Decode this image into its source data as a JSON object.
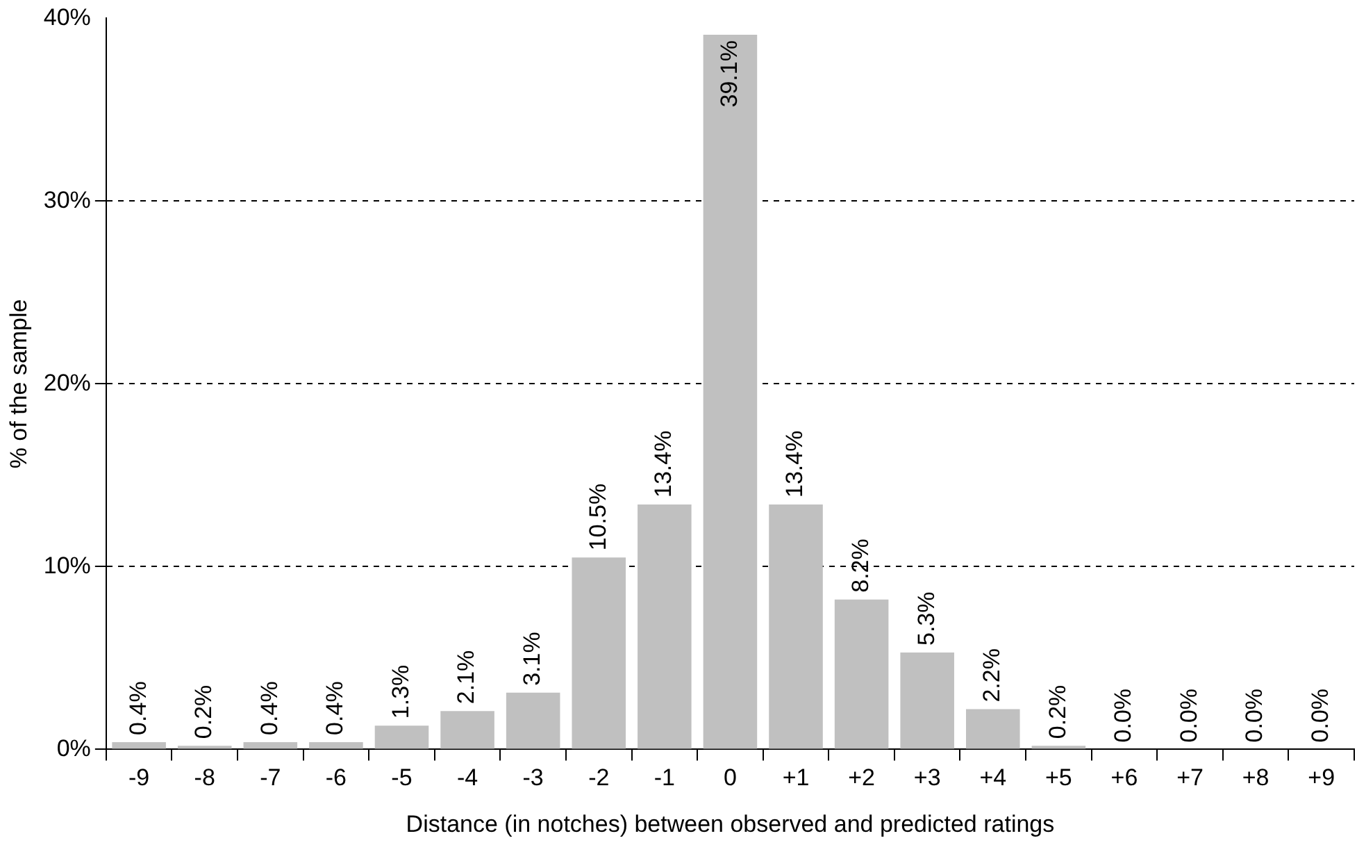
{
  "chart_data": {
    "type": "bar",
    "xlabel": "Distance (in notches) between observed and predicted ratings",
    "ylabel": "% of the sample",
    "categories": [
      "-9",
      "-8",
      "-7",
      "-6",
      "-5",
      "-4",
      "-3",
      "-2",
      "-1",
      "0",
      "+1",
      "+2",
      "+3",
      "+4",
      "+5",
      "+6",
      "+7",
      "+8",
      "+9"
    ],
    "values": [
      0.4,
      0.2,
      0.4,
      0.4,
      1.3,
      2.1,
      3.1,
      10.5,
      13.4,
      39.1,
      13.4,
      8.2,
      5.3,
      2.2,
      0.2,
      0.0,
      0.0,
      0.0,
      0.0
    ],
    "value_labels": [
      "0.4%",
      "0.2%",
      "0.4%",
      "0.4%",
      "1.3%",
      "2.1%",
      "3.1%",
      "10.5%",
      "13.4%",
      "39.1%",
      "13.4%",
      "8.2%",
      "5.3%",
      "2.2%",
      "0.2%",
      "0.0%",
      "0.0%",
      "0.0%",
      "0.0%"
    ],
    "color": "#c0c0c0",
    "ylim": [
      0,
      40
    ],
    "yticks": [
      {
        "value": 0,
        "label": "0%"
      },
      {
        "value": 10,
        "label": "10%"
      },
      {
        "value": 20,
        "label": "20%"
      },
      {
        "value": 30,
        "label": "30%"
      },
      {
        "value": 40,
        "label": "40%"
      }
    ],
    "grid": "y",
    "line_style": "dashed",
    "legend": false
  }
}
